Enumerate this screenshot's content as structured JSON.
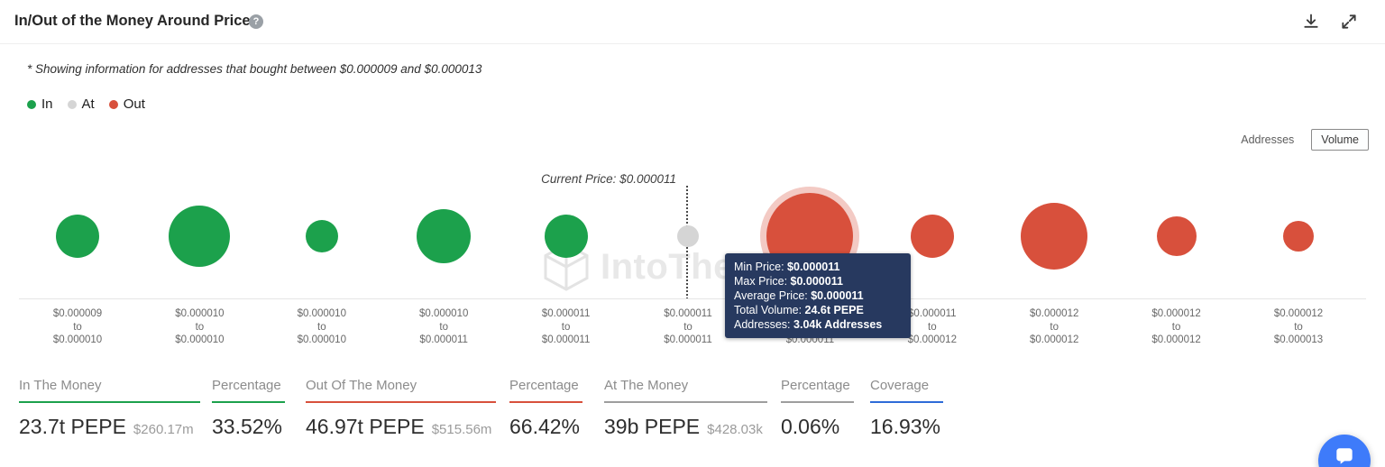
{
  "header": {
    "title": "In/Out of the Money Around Price"
  },
  "icons": {
    "help": "?"
  },
  "note": "* Showing information for addresses that bought between $0.000009 and $0.000013",
  "legend": {
    "items": [
      {
        "label": "In",
        "status": "in"
      },
      {
        "label": "At",
        "status": "at"
      },
      {
        "label": "Out",
        "status": "out"
      }
    ]
  },
  "view_toggle": {
    "addresses_label": "Addresses",
    "volume_label": "Volume",
    "selected": "Volume"
  },
  "colors": {
    "in": "#1ca14c",
    "at": "#d5d5d5",
    "out": "#d8503c",
    "at_line": "#9e9e9e",
    "coverage": "#2e6bd8",
    "tooltip_bg": "#27395f"
  },
  "current_price": {
    "label": "Current Price: $0.000011"
  },
  "watermark": "IntoTheBlock",
  "chart_data": {
    "type": "bubble",
    "x_axis": "price ranges (USD)",
    "value_encoding": "bubble size = volume held at range",
    "connector": "to",
    "categories": [
      {
        "from": "$0.000009",
        "to": "$0.000010"
      },
      {
        "from": "$0.000010",
        "to": "$0.000010"
      },
      {
        "from": "$0.000010",
        "to": "$0.000010"
      },
      {
        "from": "$0.000010",
        "to": "$0.000011"
      },
      {
        "from": "$0.000011",
        "to": "$0.000011"
      },
      {
        "from": "$0.000011",
        "to": "$0.000011"
      },
      {
        "from": "$0.000011",
        "to": "$0.000011"
      },
      {
        "from": "$0.000011",
        "to": "$0.000012"
      },
      {
        "from": "$0.000012",
        "to": "$0.000012"
      },
      {
        "from": "$0.000012",
        "to": "$0.000012"
      },
      {
        "from": "$0.000012",
        "to": "$0.000013"
      }
    ],
    "bubbles": [
      {
        "status": "in",
        "r": 24
      },
      {
        "status": "in",
        "r": 34
      },
      {
        "status": "in",
        "r": 18
      },
      {
        "status": "in",
        "r": 30
      },
      {
        "status": "in",
        "r": 24
      },
      {
        "status": "at",
        "r": 12
      },
      {
        "status": "out",
        "r": 48
      },
      {
        "status": "out",
        "r": 24
      },
      {
        "status": "out",
        "r": 37
      },
      {
        "status": "out",
        "r": 22
      },
      {
        "status": "out",
        "r": 17
      }
    ],
    "hovered_index": 6
  },
  "tooltip": {
    "rows": [
      {
        "label": "Min Price: ",
        "value": "$0.000011"
      },
      {
        "label": "Max Price: ",
        "value": "$0.000011"
      },
      {
        "label": "Average Price: ",
        "value": "$0.000011"
      },
      {
        "label": "Total Volume: ",
        "value": "24.6t PEPE"
      },
      {
        "label": "Addresses: ",
        "value": "3.04k Addresses"
      }
    ]
  },
  "stats": [
    {
      "label": "In The Money",
      "value": "23.7t PEPE",
      "sub": "$260.17m",
      "accent": "in"
    },
    {
      "label": "Percentage",
      "value": "33.52%",
      "accent": "in"
    },
    {
      "label": "Out Of The Money",
      "value": "46.97t PEPE",
      "sub": "$515.56m",
      "accent": "out"
    },
    {
      "label": "Percentage",
      "value": "66.42%",
      "accent": "out"
    },
    {
      "label": "At The Money",
      "value": "39b PEPE",
      "sub": "$428.03k",
      "accent": "at_line"
    },
    {
      "label": "Percentage",
      "value": "0.06%",
      "accent": "at_line"
    },
    {
      "label": "Coverage",
      "value": "16.93%",
      "accent": "coverage"
    }
  ]
}
